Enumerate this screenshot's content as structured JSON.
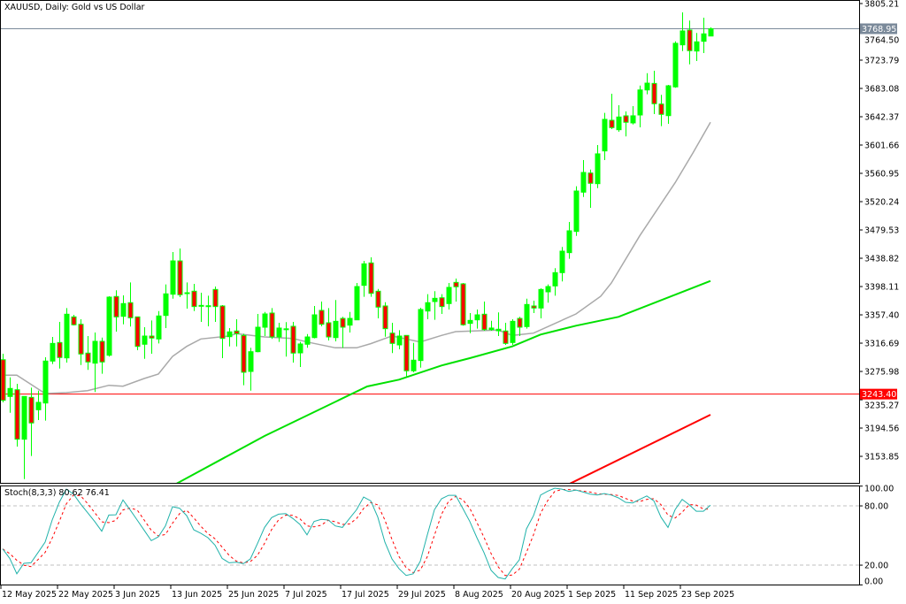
{
  "chart_data": [
    {
      "type": "candlestick",
      "title": "XAUUSD, Daily:  Gold vs US Dollar",
      "colors": {
        "bull_body": "#00ff00",
        "bear_body": "#ff0000",
        "wick": "#00ff00",
        "ma_gray": "#a9a9a9",
        "ma_green": "#00e000",
        "ma_red": "#ff0000"
      },
      "y_ticks": [
        "3805.21",
        "3764.50",
        "3723.79",
        "3683.08",
        "3642.37",
        "3601.66",
        "3560.95",
        "3520.24",
        "3479.53",
        "3438.82",
        "3398.11",
        "3357.40",
        "3316.69",
        "3275.98",
        "3235.27",
        "3194.56",
        "3153.85"
      ],
      "ylim": [
        3151,
        3810
      ],
      "current_price": {
        "value": 3768.95,
        "label": "3768.95",
        "color": "#7b8a9a"
      },
      "horizontal_line": {
        "value": 3243.4,
        "label": "3243.40",
        "color": "#ff0000"
      },
      "x_tick_labels": [
        "12 May 2025",
        "22 May 2025",
        "3 Jun 2025",
        "13 Jun 2025",
        "25 Jun 2025",
        "7 Jul 2025",
        "17 Jul 2025",
        "29 Jul 2025",
        "8 Aug 2025",
        "20 Aug 2025",
        "1 Sep 2025",
        "11 Sep 2025",
        "23 Sep 2025"
      ],
      "x_tick_every_bars": 8,
      "ohlc": [
        [
          3292.9,
          3301.5,
          3231.5,
          3234.4
        ],
        [
          3240.0,
          3267.5,
          3216.6,
          3251.5
        ],
        [
          3249.7,
          3258.2,
          3167.9,
          3178.5
        ],
        [
          3178.5,
          3240.4,
          3121.2,
          3240.0
        ],
        [
          3238.7,
          3252.7,
          3154.3,
          3201.9
        ],
        [
          3220.9,
          3248.4,
          3206.1,
          3231.5
        ],
        [
          3230.6,
          3296.4,
          3205.2,
          3290.9
        ],
        [
          3290.9,
          3325.6,
          3286.6,
          3316.3
        ],
        [
          3317.6,
          3347.3,
          3280.2,
          3296.0
        ],
        [
          3295.5,
          3367.2,
          3288.7,
          3358.3
        ],
        [
          3354.5,
          3357.4,
          3342.2,
          3343.1
        ],
        [
          3343.8,
          3351.1,
          3285.3,
          3301.1
        ],
        [
          3302.4,
          3326.9,
          3278.2,
          3289.6
        ],
        [
          3287.9,
          3332.0,
          3246.4,
          3319.3
        ],
        [
          3319.3,
          3324.7,
          3272.6,
          3289.6
        ],
        [
          3299.3,
          3384.1,
          3297.3,
          3382.9
        ],
        [
          3383.8,
          3392.7,
          3333.3,
          3354.5
        ],
        [
          3355.3,
          3385.4,
          3343.8,
          3373.6
        ],
        [
          3374.9,
          3404.1,
          3340.5,
          3353.2
        ],
        [
          3354.5,
          3354.9,
          3306.6,
          3312.0
        ],
        [
          3315.1,
          3339.6,
          3294.2,
          3326.9
        ],
        [
          3326.9,
          3349.4,
          3301.5,
          3324.0
        ],
        [
          3322.7,
          3362.9,
          3316.3,
          3355.8
        ],
        [
          3356.5,
          3401.1,
          3338.4,
          3387.6
        ],
        [
          3387.1,
          3447.8,
          3380.7,
          3435.0
        ],
        [
          3435.0,
          3452.8,
          3382.9,
          3386.3
        ],
        [
          3388.0,
          3404.1,
          3366.3,
          3389.2
        ],
        [
          3391.4,
          3402.0,
          3362.9,
          3369.3
        ],
        [
          3371.0,
          3389.2,
          3347.3,
          3370.4
        ],
        [
          3370.5,
          3385.0,
          3340.9,
          3369.8
        ],
        [
          3393.9,
          3398.1,
          3347.3,
          3369.3
        ],
        [
          3370.2,
          3371.4,
          3295.1,
          3323.5
        ],
        [
          3326.0,
          3338.4,
          3312.0,
          3332.9
        ],
        [
          3334.2,
          3351.1,
          3312.0,
          3330.3
        ],
        [
          3327.8,
          3330.3,
          3256.1,
          3274.8
        ],
        [
          3276.0,
          3310.0,
          3248.4,
          3304.4
        ],
        [
          3304.4,
          3358.7,
          3303.6,
          3339.6
        ],
        [
          3339.6,
          3361.6,
          3326.9,
          3358.7
        ],
        [
          3360.0,
          3367.2,
          3322.7,
          3325.6
        ],
        [
          3325.6,
          3346.0,
          3318.4,
          3338.4
        ],
        [
          3336.7,
          3346.9,
          3297.3,
          3337.3
        ],
        [
          3340.9,
          3347.3,
          3288.7,
          3302.4
        ],
        [
          3302.7,
          3318.4,
          3282.4,
          3315.5
        ],
        [
          3315.1,
          3329.8,
          3310.0,
          3325.6
        ],
        [
          3324.7,
          3370.2,
          3323.5,
          3357.4
        ],
        [
          3363.8,
          3376.5,
          3340.9,
          3343.8
        ],
        [
          3346.0,
          3367.2,
          3320.5,
          3325.6
        ],
        [
          3324.7,
          3378.7,
          3319.3,
          3348.1
        ],
        [
          3352.3,
          3354.5,
          3310.0,
          3339.6
        ],
        [
          3342.6,
          3361.6,
          3332.0,
          3352.3
        ],
        [
          3350.2,
          3403.2,
          3349.8,
          3398.1
        ],
        [
          3399.8,
          3435.0,
          3383.3,
          3430.8
        ],
        [
          3432.1,
          3440.1,
          3383.3,
          3388.3
        ],
        [
          3391.4,
          3394.7,
          3352.3,
          3368.5
        ],
        [
          3370.2,
          3375.6,
          3326.0,
          3337.5
        ],
        [
          3331.1,
          3346.0,
          3302.4,
          3316.3
        ],
        [
          3314.2,
          3335.4,
          3307.8,
          3326.9
        ],
        [
          3327.8,
          3328.2,
          3268.8,
          3276.9
        ],
        [
          3276.9,
          3317.1,
          3274.7,
          3292.2
        ],
        [
          3291.7,
          3367.6,
          3281.5,
          3365.1
        ],
        [
          3362.9,
          3387.1,
          3351.1,
          3374.9
        ],
        [
          3376.5,
          3391.4,
          3350.2,
          3381.2
        ],
        [
          3382.0,
          3387.1,
          3358.7,
          3369.3
        ],
        [
          3373.6,
          3403.2,
          3365.1,
          3396.9
        ],
        [
          3404.1,
          3409.6,
          3376.5,
          3397.8
        ],
        [
          3402.0,
          3403.2,
          3341.8,
          3343.1
        ],
        [
          3345.1,
          3360.0,
          3331.1,
          3349.4
        ],
        [
          3350.2,
          3365.1,
          3337.5,
          3357.4
        ],
        [
          3358.3,
          3376.5,
          3334.5,
          3336.2
        ],
        [
          3336.2,
          3348.9,
          3334.5,
          3338.4
        ],
        [
          3334.5,
          3360.9,
          3326.9,
          3336.7
        ],
        [
          3334.2,
          3346.0,
          3314.2,
          3316.3
        ],
        [
          3317.6,
          3351.1,
          3314.2,
          3348.1
        ],
        [
          3352.3,
          3354.5,
          3326.9,
          3339.6
        ],
        [
          3340.5,
          3380.7,
          3337.5,
          3372.3
        ],
        [
          3370.2,
          3377.8,
          3360.0,
          3367.2
        ],
        [
          3367.2,
          3395.6,
          3352.3,
          3393.9
        ],
        [
          3390.5,
          3401.1,
          3374.9,
          3398.1
        ],
        [
          3399.0,
          3424.5,
          3385.0,
          3418.1
        ],
        [
          3418.1,
          3455.0,
          3405.4,
          3449.0
        ],
        [
          3446.9,
          3491.0,
          3438.0,
          3478.3
        ],
        [
          3477.4,
          3542.3,
          3471.0,
          3535.5
        ],
        [
          3533.9,
          3580.1,
          3527.0,
          3562.2
        ],
        [
          3561.4,
          3566.4,
          3511.4,
          3546.6
        ],
        [
          3546.1,
          3601.7,
          3539.7,
          3589.0
        ],
        [
          3593.2,
          3647.9,
          3580.1,
          3638.6
        ],
        [
          3637.3,
          3675.5,
          3624.6,
          3626.7
        ],
        [
          3623.7,
          3658.9,
          3620.8,
          3642.0
        ],
        [
          3643.7,
          3650.0,
          3614.0,
          3634.4
        ],
        [
          3633.5,
          3657.7,
          3631.3,
          3643.7
        ],
        [
          3644.9,
          3687.3,
          3627.1,
          3680.9
        ],
        [
          3680.9,
          3705.1,
          3674.6,
          3690.7
        ],
        [
          3690.3,
          3708.5,
          3646.2,
          3661.1
        ],
        [
          3660.6,
          3673.8,
          3628.8,
          3645.8
        ],
        [
          3644.0,
          3688.2,
          3632.2,
          3686.9
        ],
        [
          3685.3,
          3750.9,
          3684.0,
          3748.0
        ],
        [
          3745.8,
          3792.5,
          3736.9,
          3765.8
        ],
        [
          3767.1,
          3780.7,
          3717.8,
          3737.4
        ],
        [
          3736.9,
          3762.9,
          3722.5,
          3750.1
        ],
        [
          3750.9,
          3784.9,
          3734.0,
          3761.6
        ],
        [
          3758.5,
          3771.0,
          3758.5,
          3768.95
        ]
      ],
      "moving_averages": [
        {
          "color": "#a9a9a9",
          "points": [
            [
              0,
              3270.6
            ],
            [
              2,
              3270.6
            ],
            [
              6,
              3244.2
            ],
            [
              9,
              3245.5
            ],
            [
              12,
              3248.4
            ],
            [
              15,
              3256.1
            ],
            [
              17,
              3254.8
            ],
            [
              20,
              3265.8
            ],
            [
              22,
              3272.2
            ],
            [
              24,
              3297.6
            ],
            [
              26,
              3312
            ],
            [
              28,
              3322.7
            ],
            [
              32,
              3326.9
            ],
            [
              33,
              3330.3
            ],
            [
              37,
              3325.6
            ],
            [
              41,
              3323.5
            ],
            [
              43,
              3318.4
            ],
            [
              47,
              3310
            ],
            [
              50,
              3310
            ],
            [
              52,
              3316
            ],
            [
              55,
              3327
            ],
            [
              59,
              3318.4
            ],
            [
              62,
              3327.8
            ],
            [
              64,
              3333.3
            ],
            [
              70,
              3335.4
            ],
            [
              72,
              3327.8
            ],
            [
              75,
              3331.1
            ],
            [
              81,
              3358.7
            ],
            [
              84.5,
              3384.1
            ],
            [
              86,
              3403.2
            ],
            [
              90,
              3471
            ],
            [
              95,
              3547.4
            ],
            [
              97.5,
              3589.8
            ],
            [
              100,
              3634.4
            ]
          ]
        },
        {
          "color": "#00e000",
          "points": [
            [
              24.6,
              3114.9
            ],
            [
              37,
              3183.2
            ],
            [
              51.5,
              3254.4
            ],
            [
              56,
              3264.2
            ],
            [
              62,
              3284.5
            ],
            [
              66,
              3295.1
            ],
            [
              72,
              3312
            ],
            [
              76,
              3329
            ],
            [
              81,
              3341.8
            ],
            [
              87,
              3354.5
            ],
            [
              95,
              3386.3
            ],
            [
              100,
              3406.2
            ]
          ]
        },
        {
          "color": "#ff0000",
          "points": [
            [
              80.2,
              3114.9
            ],
            [
              100,
              3213.7
            ]
          ]
        }
      ]
    },
    {
      "type": "line",
      "title": "Stoch(8,3,3) 80.62 76.41",
      "ylim": [
        0,
        100
      ],
      "y_ticks": [
        "100.00",
        "80.00",
        "20.00",
        "0.00"
      ],
      "levels": [
        80,
        20
      ],
      "main_color": "#20b2aa",
      "signal_color": "#ff0000",
      "main": [
        36.4,
        26.9,
        11.3,
        21.8,
        22.4,
        32.8,
        43.3,
        65.7,
        83.6,
        97,
        92,
        82,
        73.1,
        64.2,
        54.3,
        70.7,
        71,
        86,
        76.1,
        65.7,
        55.2,
        44.8,
        48.7,
        59.7,
        79.1,
        77.6,
        70.1,
        55.8,
        52.2,
        47.8,
        40.3,
        26.9,
        22.4,
        23,
        21.5,
        26.3,
        41.8,
        58.2,
        68.1,
        71.6,
        72.2,
        67.2,
        61.2,
        50.7,
        64.2,
        66.3,
        65.7,
        59.7,
        58.2,
        67.2,
        76.1,
        89,
        85.1,
        68.7,
        43.3,
        26.3,
        16.4,
        9.6,
        11.3,
        23.9,
        50.7,
        76.1,
        87.2,
        90.7,
        90.7,
        77.6,
        64.2,
        47.8,
        32.8,
        14.9,
        7.5,
        6,
        16.4,
        25.4,
        56.7,
        70.1,
        91,
        94.9,
        97.9,
        97,
        94.6,
        96.1,
        94,
        91.9,
        91,
        92.5,
        91,
        88.1,
        83.6,
        83,
        86.6,
        90.1,
        85.1,
        68.7,
        58.2,
        76.1,
        86.6,
        81.2,
        74.6,
        74.6,
        80.62
      ]
    }
  ]
}
